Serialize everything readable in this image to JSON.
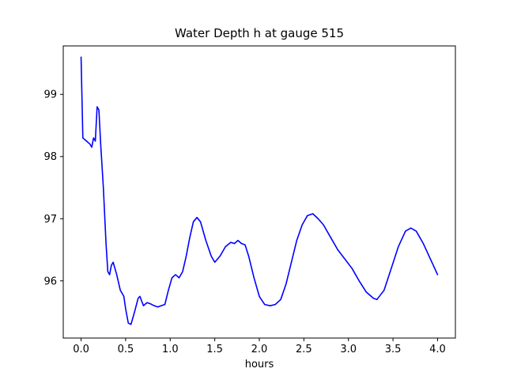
{
  "chart_data": {
    "type": "line",
    "title": "Water Depth h at gauge 515",
    "xlabel": "hours",
    "ylabel": "",
    "line_color": "#0000ff",
    "axes_color": "#000000",
    "background_color": "#ffffff",
    "grid": false,
    "legend": null,
    "xlim": [
      -0.2,
      4.2
    ],
    "ylim": [
      95.08,
      99.78
    ],
    "x_ticks": [
      0.0,
      0.5,
      1.0,
      1.5,
      2.0,
      2.5,
      3.0,
      3.5,
      4.0
    ],
    "x_tick_labels": [
      "0.0",
      "0.5",
      "1.0",
      "1.5",
      "2.0",
      "2.5",
      "3.0",
      "3.5",
      "4.0"
    ],
    "y_ticks": [
      96,
      97,
      98,
      99
    ],
    "y_tick_labels": [
      "96",
      "97",
      "98",
      "99"
    ],
    "x": [
      0.0,
      0.02,
      0.06,
      0.1,
      0.12,
      0.14,
      0.16,
      0.18,
      0.2,
      0.22,
      0.25,
      0.28,
      0.3,
      0.32,
      0.34,
      0.36,
      0.4,
      0.44,
      0.48,
      0.5,
      0.53,
      0.56,
      0.6,
      0.64,
      0.66,
      0.7,
      0.74,
      0.78,
      0.82,
      0.86,
      0.9,
      0.94,
      0.98,
      1.02,
      1.06,
      1.1,
      1.14,
      1.18,
      1.22,
      1.26,
      1.3,
      1.34,
      1.4,
      1.46,
      1.5,
      1.56,
      1.62,
      1.68,
      1.72,
      1.76,
      1.8,
      1.84,
      1.88,
      1.94,
      2.0,
      2.06,
      2.12,
      2.18,
      2.24,
      2.3,
      2.36,
      2.42,
      2.48,
      2.54,
      2.6,
      2.66,
      2.72,
      2.8,
      2.88,
      2.96,
      3.04,
      3.12,
      3.2,
      3.28,
      3.32,
      3.4,
      3.48,
      3.56,
      3.64,
      3.7,
      3.76,
      3.84,
      3.92,
      4.0
    ],
    "y": [
      99.6,
      98.3,
      98.25,
      98.2,
      98.15,
      98.3,
      98.25,
      98.8,
      98.75,
      98.2,
      97.5,
      96.6,
      96.15,
      96.1,
      96.25,
      96.3,
      96.1,
      95.85,
      95.75,
      95.55,
      95.32,
      95.3,
      95.5,
      95.72,
      95.75,
      95.6,
      95.65,
      95.63,
      95.6,
      95.58,
      95.6,
      95.62,
      95.85,
      96.05,
      96.1,
      96.05,
      96.15,
      96.4,
      96.7,
      96.95,
      97.02,
      96.95,
      96.65,
      96.4,
      96.3,
      96.4,
      96.55,
      96.62,
      96.6,
      96.65,
      96.6,
      96.58,
      96.4,
      96.05,
      95.75,
      95.62,
      95.6,
      95.62,
      95.7,
      95.95,
      96.3,
      96.65,
      96.9,
      97.05,
      97.08,
      97.0,
      96.9,
      96.7,
      96.5,
      96.35,
      96.2,
      96.0,
      95.82,
      95.72,
      95.7,
      95.85,
      96.2,
      96.55,
      96.8,
      96.85,
      96.8,
      96.6,
      96.35,
      96.1
    ]
  }
}
